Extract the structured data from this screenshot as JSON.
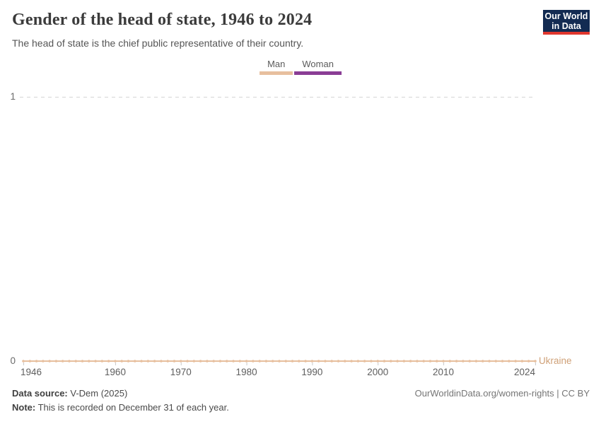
{
  "header": {
    "title": "Gender of the head of state, 1946 to 2024",
    "subtitle": "The head of state is the chief public representative of their country.",
    "logo": {
      "line1": "Our World",
      "line2": "in Data",
      "bg_color": "#132b52",
      "accent_color": "#e0372e",
      "text_color": "#ffffff"
    }
  },
  "legend": {
    "items": [
      {
        "label": "Man",
        "color": "#e7bf9e"
      },
      {
        "label": "Woman",
        "color": "#8a3d95"
      }
    ]
  },
  "chart_data": {
    "type": "line",
    "title": "Gender of the head of state, 1946 to 2024",
    "subtitle": "The head of state is the chief public representative of their country.",
    "xlim": [
      1946,
      2024
    ],
    "ylim": [
      0,
      1
    ],
    "x_ticks": [
      1946,
      1960,
      1970,
      1980,
      1990,
      2000,
      2010,
      2024
    ],
    "y_ticks": [
      0,
      1
    ],
    "grid": "horizontal dashed gridline at y=1, grid on",
    "grid_color": "#d5d5d5",
    "axis_tick_color": "#c9c9c9",
    "legend_position": "top-center",
    "categories": [
      {
        "label": "Man",
        "color": "#e7bf9e"
      },
      {
        "label": "Woman",
        "color": "#8a3d95"
      }
    ],
    "series": [
      {
        "name": "Ukraine",
        "color": "#e7bf9e",
        "label_color": "#cfa077",
        "years": {
          "start": 1946,
          "end": 2024,
          "step": 1
        },
        "constant_value": 0,
        "marker": "circle at every year"
      }
    ]
  },
  "footer": {
    "source_label": "Data source:",
    "source_value": "V-Dem (2025)",
    "note_label": "Note:",
    "note_value": "This is recorded on December 31 of each year.",
    "attribution": "OurWorldinData.org/women-rights | CC BY"
  }
}
